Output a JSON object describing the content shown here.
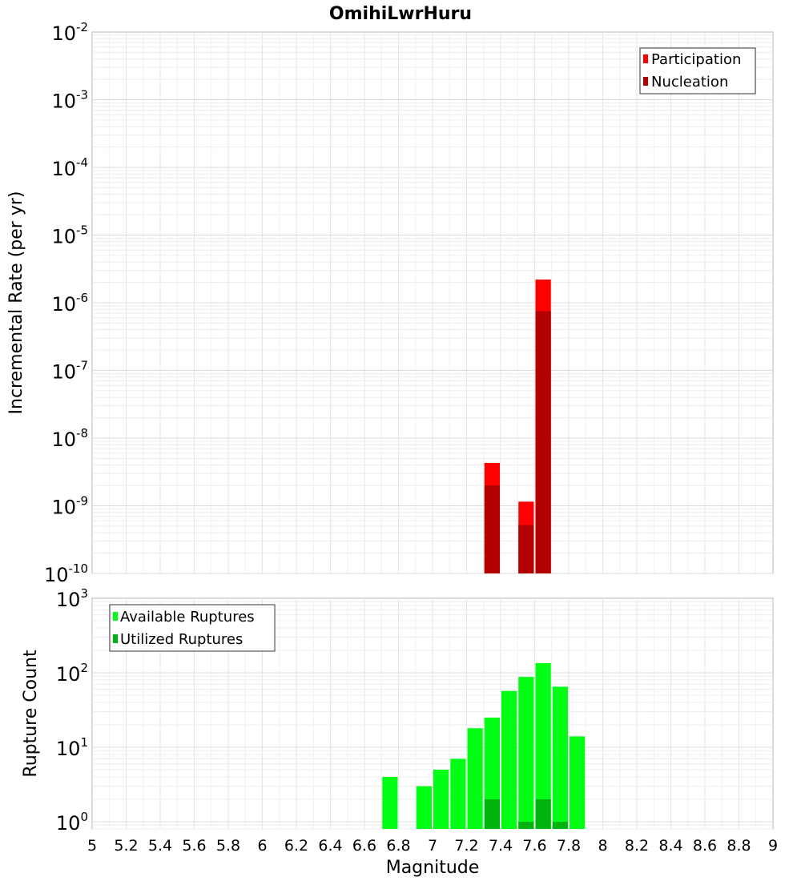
{
  "chart_data": [
    {
      "type": "bar",
      "title": "OmihiLwrHuru",
      "xlabel": "",
      "ylabel": "Incremental Rate (per yr)",
      "yscale": "log",
      "ylim": [
        1e-10,
        0.01
      ],
      "xlim": [
        5,
        9
      ],
      "y_tick_exponents": [
        "-2",
        "-3",
        "-4",
        "-5",
        "-6",
        "-7",
        "-8",
        "-9",
        "-10"
      ],
      "legend_position": "top-right",
      "grid": true,
      "series": [
        {
          "name": "Participation",
          "color": "#ff0000",
          "x": [
            7.35,
            7.55,
            7.65
          ],
          "values": [
            4.3e-09,
            1.15e-09,
            2.2e-06
          ]
        },
        {
          "name": "Nucleation",
          "color": "#b30000",
          "x": [
            7.35,
            7.55,
            7.65
          ],
          "values": [
            2e-09,
            5.2e-10,
            7.5e-07
          ]
        }
      ]
    },
    {
      "type": "bar",
      "title": "",
      "xlabel": "Magnitude",
      "ylabel": "Rupture Count",
      "yscale": "log",
      "ylim": [
        0.8,
        1000
      ],
      "xlim": [
        5,
        9
      ],
      "x_ticks": [
        "5",
        "5.2",
        "5.4",
        "5.6",
        "5.8",
        "6",
        "6.2",
        "6.4",
        "6.6",
        "6.8",
        "7",
        "7.2",
        "7.4",
        "7.6",
        "7.8",
        "8",
        "8.2",
        "8.4",
        "8.6",
        "8.8",
        "9"
      ],
      "y_tick_exponents": [
        "3",
        "2",
        "1",
        "0"
      ],
      "legend_position": "top-left",
      "grid": true,
      "series": [
        {
          "name": "Available Ruptures",
          "color": "#00ff14",
          "x": [
            6.75,
            6.95,
            7.05,
            7.15,
            7.25,
            7.35,
            7.45,
            7.55,
            7.65,
            7.75,
            7.85
          ],
          "values": [
            4,
            3,
            5,
            7,
            18,
            25,
            57,
            88,
            135,
            65,
            14
          ]
        },
        {
          "name": "Utilized Ruptures",
          "color": "#00b40e",
          "x": [
            7.35,
            7.55,
            7.65,
            7.75
          ],
          "values": [
            2,
            1,
            2,
            1
          ]
        }
      ]
    }
  ]
}
